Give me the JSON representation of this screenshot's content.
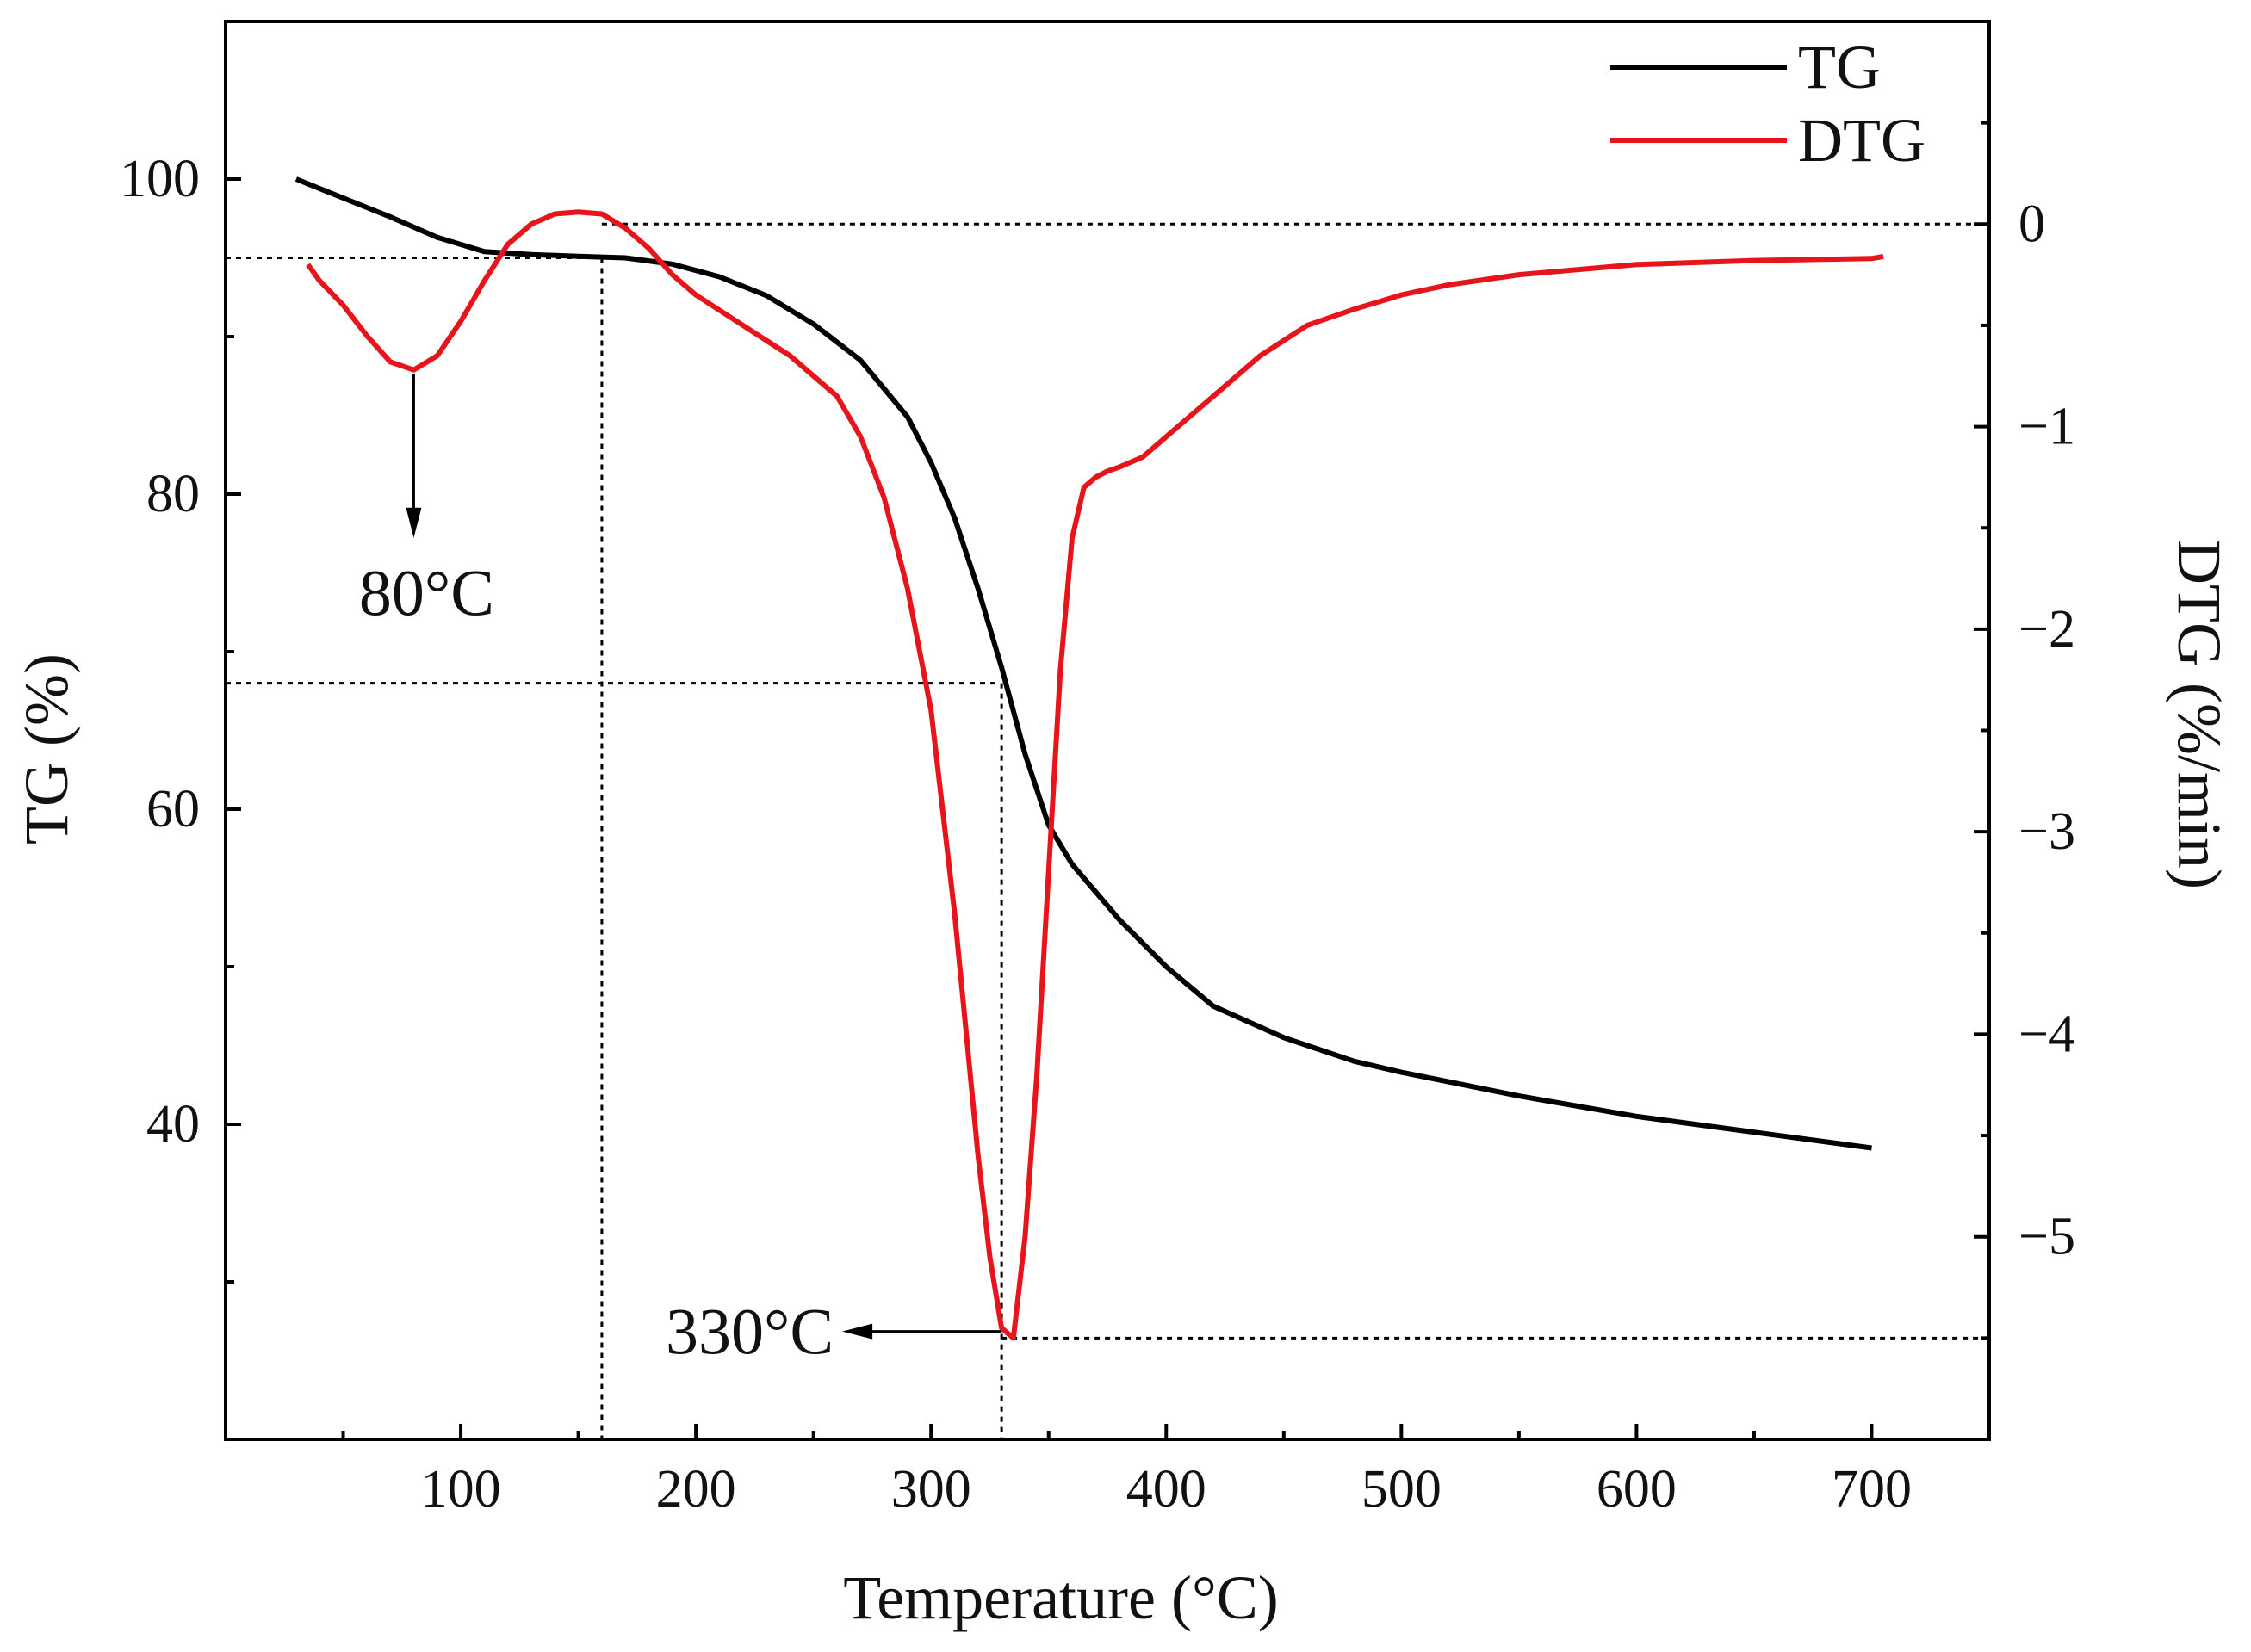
{
  "chart_data": {
    "type": "line",
    "xlabel": "Temperature (°C)",
    "ylabel_left": "TG (%)",
    "ylabel_right": "DTG (%/min)",
    "xlim": [
      0,
      750
    ],
    "ylim_left": [
      20,
      110
    ],
    "ylim_right": [
      -6,
      1
    ],
    "x_ticks": [
      100,
      200,
      300,
      400,
      500,
      600,
      700
    ],
    "y_left_ticks": [
      40,
      60,
      80,
      100
    ],
    "y_right_ticks": [
      0,
      -1,
      -2,
      -3,
      -4,
      -5
    ],
    "y_right_tick_labels": [
      "0",
      "−1",
      "−2",
      "−3",
      "−4",
      "−5"
    ],
    "grid": false,
    "legend_position": "top-right",
    "series": [
      {
        "name": "TG",
        "axis": "left",
        "color": "#000000",
        "x": [
          30,
          50,
          70,
          90,
          110,
          130,
          150,
          170,
          190,
          210,
          230,
          250,
          270,
          290,
          300,
          310,
          320,
          330,
          340,
          350,
          360,
          380,
          400,
          420,
          450,
          480,
          500,
          550,
          600,
          650,
          700
        ],
        "y": [
          100,
          98.8,
          97.6,
          96.3,
          95.4,
          95.2,
          95.1,
          95.0,
          94.6,
          93.8,
          92.6,
          90.8,
          88.5,
          84.9,
          82.0,
          78.5,
          74.0,
          69.0,
          63.5,
          59.0,
          56.5,
          53.0,
          50.0,
          47.5,
          45.5,
          44.0,
          43.3,
          41.8,
          40.5,
          39.5,
          38.5
        ]
      },
      {
        "name": "DTG",
        "axis": "right",
        "color": "#e8141b",
        "x": [
          35,
          40,
          50,
          60,
          70,
          80,
          90,
          100,
          110,
          120,
          130,
          140,
          150,
          160,
          170,
          180,
          190,
          200,
          220,
          240,
          260,
          270,
          280,
          290,
          300,
          310,
          315,
          320,
          325,
          330,
          335,
          340,
          345,
          350,
          355,
          360,
          365,
          370,
          375,
          380,
          390,
          400,
          420,
          440,
          460,
          480,
          500,
          520,
          550,
          580,
          600,
          650,
          700,
          705
        ],
        "y": [
          -0.2,
          -0.28,
          -0.4,
          -0.55,
          -0.68,
          -0.72,
          -0.65,
          -0.48,
          -0.28,
          -0.1,
          0.0,
          0.05,
          0.06,
          0.05,
          -0.02,
          -0.12,
          -0.25,
          -0.35,
          -0.5,
          -0.65,
          -0.85,
          -1.05,
          -1.35,
          -1.8,
          -2.4,
          -3.4,
          -4.0,
          -4.6,
          -5.1,
          -5.45,
          -5.5,
          -5.0,
          -4.2,
          -3.2,
          -2.2,
          -1.55,
          -1.3,
          -1.25,
          -1.22,
          -1.2,
          -1.15,
          -1.05,
          -0.85,
          -0.65,
          -0.5,
          -0.42,
          -0.35,
          -0.3,
          -0.25,
          -0.22,
          -0.2,
          -0.18,
          -0.17,
          -0.16
        ]
      }
    ],
    "annotations": [
      {
        "text": "80°C",
        "peak_x": 80
      },
      {
        "text": "330°C",
        "peak_x": 330
      }
    ],
    "reference_lines": {
      "vertical_x": [
        160,
        330
      ],
      "horizontal_tg": [
        95,
        68
      ],
      "horizontal_dtg": [
        0,
        -5.5
      ]
    }
  }
}
